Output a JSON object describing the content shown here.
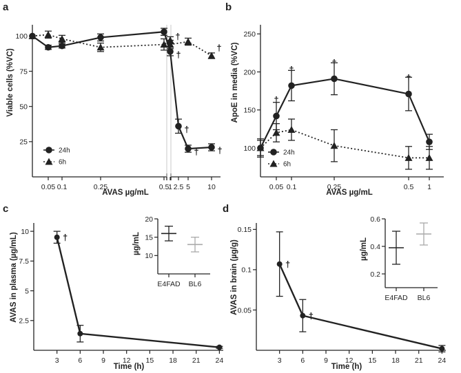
{
  "panels": {
    "a": {
      "label": "a",
      "chart_data": {
        "type": "line",
        "xlabel": "AVAS µg/mL",
        "ylabel": "Viable cells (%VC)",
        "x_tick_labels": [
          "0.05",
          "0.1",
          "0.25",
          "0.5",
          "1",
          "2.5",
          "5",
          "10"
        ],
        "y_ticks": [
          "25",
          "50",
          "75",
          "100"
        ],
        "ylim": [
          0,
          108
        ],
        "legend": [
          "24h",
          "6h"
        ],
        "series": [
          {
            "name": "24h",
            "line": "solid",
            "marker": "circle",
            "x": [
              "0",
              "0.05",
              "0.1",
              "0.25",
              "1",
              "2.5",
              "3.5",
              "5",
              "10"
            ],
            "values": [
              100,
              92,
              93,
              99,
              103,
              89,
              36,
              20,
              21
            ],
            "err": [
              0,
              1.5,
              1.5,
              2.5,
              2.5,
              3,
              5,
              2.5,
              2.5
            ],
            "dagger": [
              false,
              false,
              false,
              false,
              false,
              true,
              true,
              true,
              true
            ]
          },
          {
            "name": "6h",
            "line": "dotted",
            "marker": "triangle",
            "x": [
              "0",
              "0.05",
              "0.1",
              "0.25",
              "1",
              "1.5",
              "2.5",
              "5",
              "10"
            ],
            "values": [
              100,
              101,
              98,
              92,
              94,
              97,
              94,
              96,
              86
            ],
            "err": [
              0,
              2.5,
              2.5,
              3,
              4,
              2.5,
              3,
              2.5,
              2
            ],
            "dagger": [
              false,
              false,
              false,
              false,
              false,
              false,
              true,
              false,
              true
            ]
          }
        ]
      }
    },
    "b": {
      "label": "b",
      "chart_data": {
        "type": "line",
        "xlabel": "AVAS µg/mL",
        "ylabel": "ApoE in media (%VC)",
        "x_tick_labels": [
          "0.05",
          "0.1",
          "0.25",
          "0.5",
          "1"
        ],
        "y_ticks": [
          "100",
          "150",
          "200",
          "250"
        ],
        "ylim": [
          62,
          262
        ],
        "legend": [
          "24h",
          "6h"
        ],
        "series": [
          {
            "name": "24h",
            "line": "solid",
            "marker": "circle",
            "x": [
              "0",
              "0.05",
              "0.1",
              "0.25",
              "0.5",
              "1"
            ],
            "values": [
              100,
              142,
              182,
              191,
              171,
              108
            ],
            "err": [
              10,
              18,
              20,
              21,
              22,
              10
            ],
            "dagger": [
              false,
              true,
              true,
              true,
              true,
              false
            ]
          },
          {
            "name": "6h",
            "line": "dotted",
            "marker": "triangle",
            "x": [
              "0",
              "0.05",
              "0.1",
              "0.25",
              "0.5",
              "1"
            ],
            "values": [
              100,
              120,
              124,
              103,
              87,
              87
            ],
            "err": [
              12,
              12,
              14,
              21,
              15,
              15
            ],
            "dagger": [
              false,
              false,
              false,
              false,
              false,
              false
            ]
          }
        ]
      }
    },
    "c": {
      "label": "c",
      "chart_data": {
        "type": "line",
        "xlabel": "Time (h)",
        "ylabel": "AVAS in plasma (µg/mL)",
        "x_ticks": [
          3,
          6,
          9,
          12,
          15,
          18,
          21,
          24
        ],
        "xlim": [
          0,
          24.5
        ],
        "y_ticks": [
          "2.5",
          "5",
          "7.5",
          "10"
        ],
        "ylim": [
          0,
          10.7
        ],
        "series": [
          {
            "name": "AVAS",
            "x": [
              3,
              6,
              24
            ],
            "values": [
              9.5,
              1.4,
              0.25
            ],
            "err": [
              0.5,
              0.7,
              0.08
            ],
            "dagger": [
              true,
              false,
              false
            ]
          }
        ],
        "inset": {
          "type": "scatter",
          "ylabel": "µg/mL",
          "categories": [
            "E4FAD",
            "BL6"
          ],
          "values": [
            16,
            13
          ],
          "err": [
            2,
            2
          ],
          "colors": [
            "#222222",
            "#a9a9a9"
          ],
          "y_ticks": [
            "10",
            "15",
            "20"
          ],
          "ylim": [
            5,
            20
          ]
        }
      }
    },
    "d": {
      "label": "d",
      "chart_data": {
        "type": "line",
        "xlabel": "Time (h)",
        "ylabel": "AVAS in brain (µg/g)",
        "x_ticks": [
          3,
          6,
          9,
          12,
          15,
          18,
          21,
          24
        ],
        "xlim": [
          0,
          24.5
        ],
        "y_ticks": [
          "0.05",
          "0.1",
          "0.15"
        ],
        "ylim": [
          0,
          0.158
        ],
        "series": [
          {
            "name": "AVAS",
            "x": [
              3,
              6,
              24
            ],
            "values": [
              0.107,
              0.043,
              0.002
            ],
            "err": [
              0.04,
              0.02,
              0.004
            ],
            "dagger": [
              true,
              true,
              false
            ]
          }
        ],
        "inset": {
          "type": "scatter",
          "ylabel": "µg/mL",
          "categories": [
            "E4FAD",
            "BL6"
          ],
          "values": [
            0.39,
            0.49
          ],
          "err": [
            0.12,
            0.08
          ],
          "colors": [
            "#222222",
            "#a9a9a9"
          ],
          "y_ticks": [
            "0.2",
            "0.4",
            "0.6"
          ],
          "ylim": [
            0.1,
            0.6
          ]
        }
      }
    }
  },
  "dagger_symbol": "†",
  "colors": {
    "ink": "#222222",
    "gray": "#a9a9a9"
  }
}
